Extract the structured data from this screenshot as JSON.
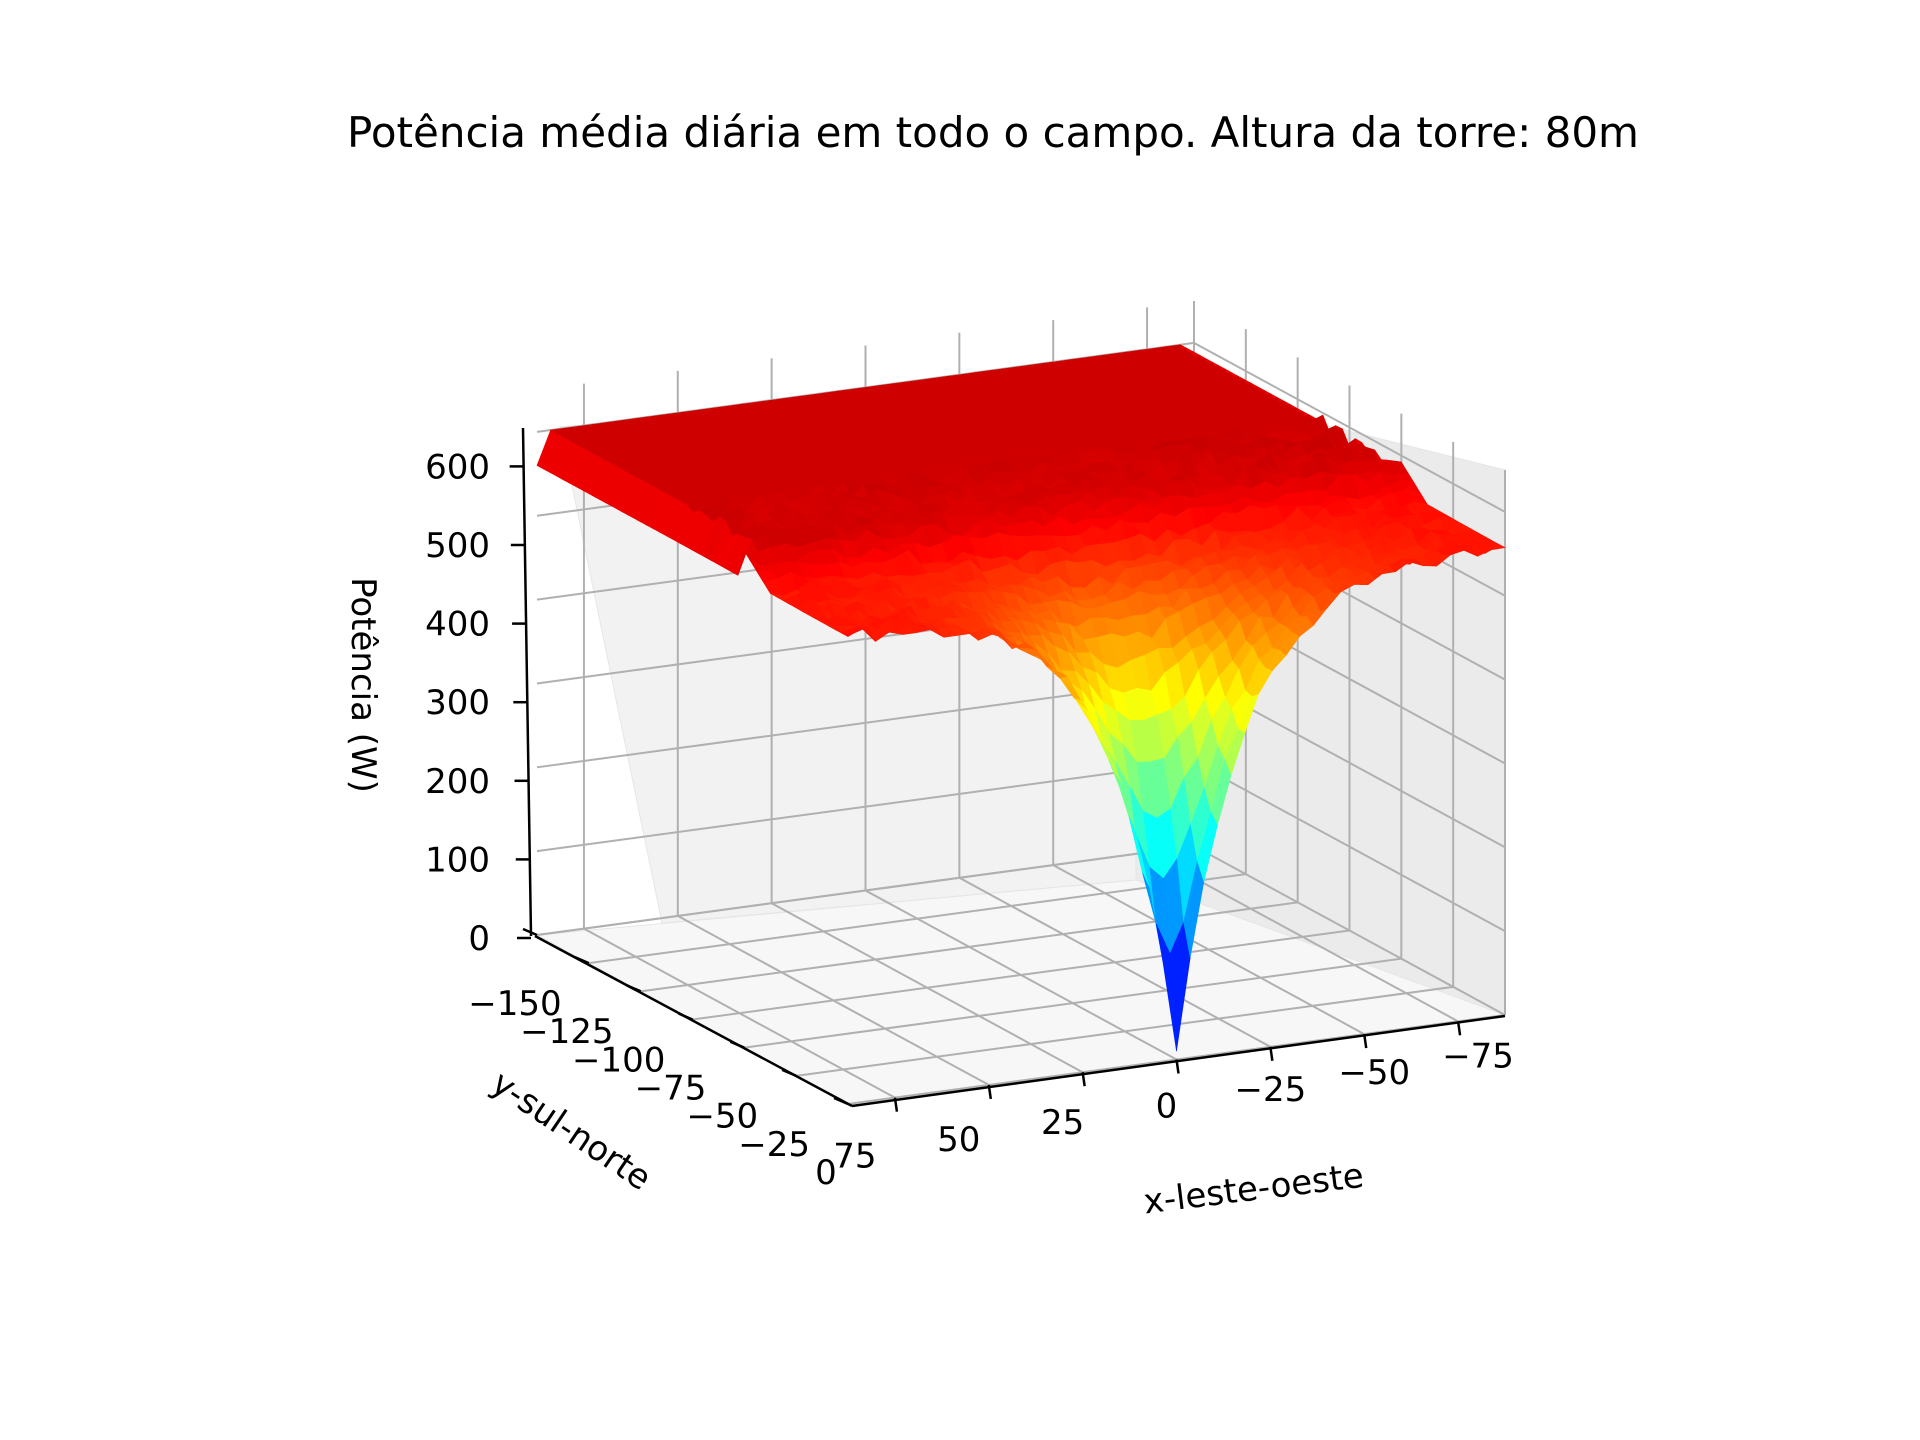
{
  "chart_data": {
    "type": "surface3d",
    "title": "Potência média diária em todo o campo. Altura da torre: 80m",
    "xlabel": "x-leste-oeste",
    "ylabel": "y-sul-norte",
    "zlabel": "Potência (W)",
    "x_ticks": [
      "75",
      "50",
      "25",
      "0",
      "−25",
      "−50",
      "−75"
    ],
    "y_ticks": [
      "−150",
      "−125",
      "−100",
      "−75",
      "−50",
      "−25",
      "0"
    ],
    "z_ticks": [
      "0",
      "100",
      "200",
      "300",
      "400",
      "500",
      "600"
    ],
    "zlim": [
      0,
      650
    ],
    "grid": true,
    "colormap": "jet",
    "surface": {
      "plateau_level": 600,
      "outer_level": 560,
      "minimum_value": 10,
      "minimum_location": {
        "x": 0,
        "y": 0
      }
    }
  }
}
